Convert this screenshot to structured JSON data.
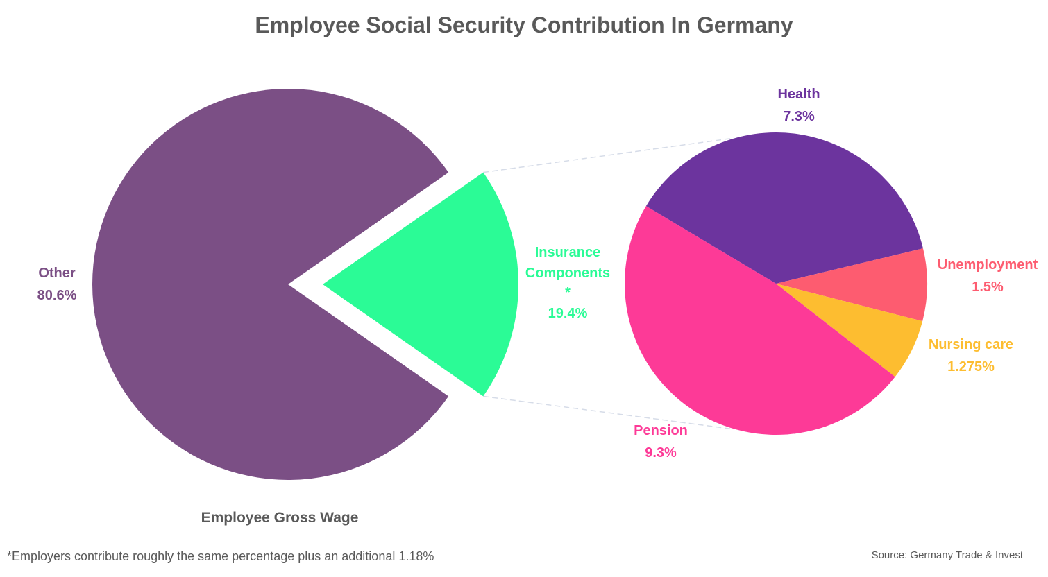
{
  "chart_data": [
    {
      "type": "pie",
      "title": "Employee Social Security Contribution In Germany",
      "subtitle": "Employee Gross Wage",
      "slices": [
        {
          "label": "Other",
          "value": 80.6,
          "display": "80.6%",
          "color": "#7b4f85"
        },
        {
          "label": "Insurance Components *",
          "label_lines": [
            "Insurance",
            "Components",
            "*"
          ],
          "value": 19.4,
          "display": "19.4%",
          "color": "#2bfb96"
        }
      ]
    },
    {
      "type": "pie",
      "title": "",
      "slices": [
        {
          "label": "Health",
          "value": 7.3,
          "display": "7.3%",
          "color": "#6c349e"
        },
        {
          "label": "Unemployment",
          "value": 1.5,
          "display": "1.5%",
          "color": "#fd5c70"
        },
        {
          "label": "Nursing care",
          "value": 1.275,
          "display": "1.275%",
          "color": "#fdbd30"
        },
        {
          "label": "Pension",
          "value": 9.3,
          "display": "9.3%",
          "color": "#fd3a97"
        }
      ]
    }
  ],
  "footnote": "*Employers contribute roughly the same percentage plus an additional 1.18%",
  "source": "Source: Germany Trade & Invest"
}
